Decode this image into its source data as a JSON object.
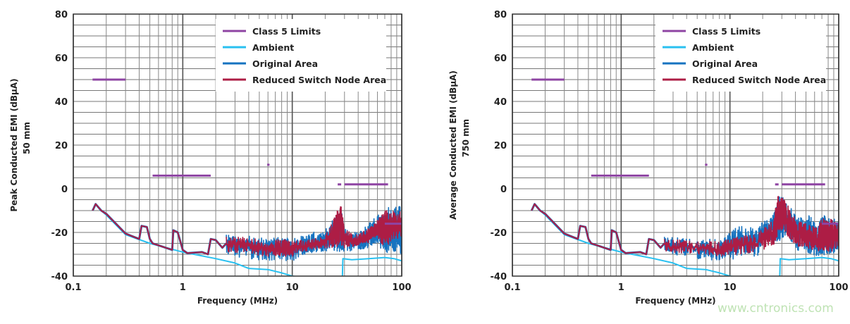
{
  "chart_data": [
    {
      "type": "line",
      "xlabel": "Frequency (MHz)",
      "ylabel": "Peak Conducted EMI (dBµA)",
      "ylabel2": "50 mm",
      "xscale": "log",
      "xlim": [
        0.1,
        100
      ],
      "ylim": [
        -40,
        80
      ],
      "xticks": [
        "0.1",
        "1",
        "10",
        "100"
      ],
      "yticks": [
        "80",
        "60",
        "40",
        "20",
        "0",
        "-20",
        "-40"
      ],
      "ytick_values": [
        80,
        60,
        40,
        20,
        0,
        -20,
        -40
      ],
      "grid": true,
      "legend_placement": "top-right",
      "legend": [
        "Class 5 Limits",
        "Ambient",
        "Original Area",
        "Reduced Switch Node Area"
      ],
      "colors": {
        "limits": "#8e44a3",
        "ambient": "#29c0f0",
        "original": "#1673c0",
        "reduced": "#ad1d45"
      },
      "limits": [
        [
          0.15,
          0.3,
          50
        ],
        [
          0.53,
          1.8,
          6
        ],
        [
          5.9,
          6.2,
          11
        ],
        [
          26,
          28,
          2
        ],
        [
          30,
          75,
          2
        ],
        [
          70,
          100,
          -16
        ]
      ],
      "ambient": [
        [
          0.15,
          -10
        ],
        [
          0.16,
          -7
        ],
        [
          0.18,
          -10
        ],
        [
          0.2,
          -12
        ],
        [
          0.3,
          -21
        ],
        [
          0.5,
          -25
        ],
        [
          1,
          -29
        ],
        [
          2,
          -32
        ],
        [
          3,
          -34
        ],
        [
          4,
          -36.5
        ],
        [
          6,
          -37
        ],
        [
          8,
          -38.5
        ],
        [
          10,
          -40
        ],
        [
          12,
          -40.5
        ],
        [
          28,
          -40.5
        ],
        [
          28.5,
          -46
        ],
        [
          29,
          -32
        ],
        [
          35,
          -32.5
        ],
        [
          50,
          -32
        ],
        [
          70,
          -31.5
        ],
        [
          85,
          -32
        ],
        [
          100,
          -33
        ]
      ],
      "low_freq_trace": [
        [
          0.15,
          -10
        ],
        [
          0.16,
          -7
        ],
        [
          0.18,
          -10
        ],
        [
          0.2,
          -11.5
        ],
        [
          0.3,
          -20.5
        ],
        [
          0.4,
          -23
        ],
        [
          0.42,
          -17
        ],
        [
          0.47,
          -17.5
        ],
        [
          0.5,
          -23
        ],
        [
          0.53,
          -25
        ],
        [
          0.8,
          -28
        ],
        [
          0.82,
          -19
        ],
        [
          0.9,
          -20
        ],
        [
          1.0,
          -28
        ],
        [
          1.1,
          -29.5
        ],
        [
          1.5,
          -29
        ],
        [
          1.7,
          -30
        ],
        [
          1.8,
          -23
        ],
        [
          2.0,
          -23.5
        ],
        [
          2.3,
          -27
        ],
        [
          2.5,
          -25
        ]
      ],
      "original_envelope": [
        [
          2.5,
          -31,
          -21
        ],
        [
          4,
          -32,
          -21
        ],
        [
          6,
          -33,
          -23
        ],
        [
          8,
          -33,
          -22
        ],
        [
          10,
          -33,
          -23
        ],
        [
          15,
          -30,
          -20
        ],
        [
          20,
          -29,
          -19
        ],
        [
          25,
          -29,
          -12
        ],
        [
          28,
          -29,
          -8
        ],
        [
          30,
          -29,
          -18
        ],
        [
          40,
          -28,
          -20
        ],
        [
          50,
          -27,
          -16
        ],
        [
          60,
          -25,
          -12
        ],
        [
          70,
          -30,
          -9
        ],
        [
          80,
          -30,
          -8
        ],
        [
          100,
          -30,
          -8
        ]
      ],
      "reduced_envelope": [
        [
          2.5,
          -29,
          -22
        ],
        [
          4,
          -30,
          -22
        ],
        [
          6,
          -31,
          -24
        ],
        [
          8,
          -31,
          -23
        ],
        [
          10,
          -31,
          -24
        ],
        [
          15,
          -28,
          -23
        ],
        [
          20,
          -27,
          -22
        ],
        [
          25,
          -27,
          -10
        ],
        [
          28,
          -27,
          -8
        ],
        [
          30,
          -27,
          -19
        ],
        [
          40,
          -26,
          -21
        ],
        [
          50,
          -25,
          -18
        ],
        [
          60,
          -22,
          -14
        ],
        [
          70,
          -28,
          -10
        ],
        [
          80,
          -25,
          -10
        ],
        [
          100,
          -22,
          -10
        ]
      ]
    },
    {
      "type": "line",
      "xlabel": "Frequency (MHz)",
      "ylabel": "Average Conducted EMI (dBµA)",
      "ylabel2": "750 mm",
      "xscale": "log",
      "xlim": [
        0.1,
        100
      ],
      "ylim": [
        -40,
        80
      ],
      "xticks": [
        "0.1",
        "1",
        "10",
        "100"
      ],
      "yticks": [
        "80",
        "60",
        "40",
        "20",
        "0",
        "-20",
        "-40"
      ],
      "ytick_values": [
        80,
        60,
        40,
        20,
        0,
        -20,
        -40
      ],
      "grid": true,
      "legend_placement": "top-right",
      "legend": [
        "Class 5 Limits",
        "Ambient",
        "Original Area",
        "Reduced Switch Node Area"
      ],
      "colors": {
        "limits": "#8e44a3",
        "ambient": "#29c0f0",
        "original": "#1673c0",
        "reduced": "#ad1d45"
      },
      "limits": [
        [
          0.15,
          0.3,
          50
        ],
        [
          0.53,
          1.8,
          6
        ],
        [
          5.9,
          6.2,
          11
        ],
        [
          26,
          28,
          2
        ],
        [
          30,
          75,
          2
        ],
        [
          70,
          100,
          -16
        ]
      ],
      "ambient": [
        [
          0.15,
          -10
        ],
        [
          0.16,
          -7
        ],
        [
          0.18,
          -10
        ],
        [
          0.2,
          -12
        ],
        [
          0.3,
          -21
        ],
        [
          0.5,
          -25
        ],
        [
          1,
          -29
        ],
        [
          2,
          -32
        ],
        [
          3,
          -34
        ],
        [
          4,
          -36.5
        ],
        [
          6,
          -37
        ],
        [
          8,
          -38.5
        ],
        [
          10,
          -40
        ],
        [
          12,
          -40.5
        ],
        [
          28,
          -40.5
        ],
        [
          28.5,
          -46
        ],
        [
          29,
          -32
        ],
        [
          35,
          -32.5
        ],
        [
          50,
          -32
        ],
        [
          70,
          -31.5
        ],
        [
          85,
          -32
        ],
        [
          100,
          -33
        ]
      ],
      "low_freq_trace": [
        [
          0.15,
          -10
        ],
        [
          0.16,
          -7
        ],
        [
          0.18,
          -10
        ],
        [
          0.2,
          -11.5
        ],
        [
          0.3,
          -20.5
        ],
        [
          0.4,
          -23
        ],
        [
          0.42,
          -17
        ],
        [
          0.47,
          -17.5
        ],
        [
          0.5,
          -23
        ],
        [
          0.53,
          -25
        ],
        [
          0.8,
          -28
        ],
        [
          0.82,
          -19
        ],
        [
          0.9,
          -20
        ],
        [
          1.0,
          -28
        ],
        [
          1.1,
          -29.5
        ],
        [
          1.5,
          -29
        ],
        [
          1.7,
          -30
        ],
        [
          1.8,
          -23
        ],
        [
          2.0,
          -23.5
        ],
        [
          2.3,
          -27
        ],
        [
          2.5,
          -25
        ]
      ],
      "original_envelope": [
        [
          2.5,
          -30,
          -22
        ],
        [
          5,
          -32,
          -23
        ],
        [
          8,
          -33,
          -23
        ],
        [
          12,
          -32,
          -17
        ],
        [
          18,
          -31,
          -18
        ],
        [
          20,
          -24,
          -15
        ],
        [
          25,
          -24,
          -12
        ],
        [
          28,
          -24,
          -2
        ],
        [
          32,
          -22,
          -4
        ],
        [
          40,
          -28,
          -12
        ],
        [
          50,
          -29,
          -14
        ],
        [
          55,
          -30,
          -11
        ],
        [
          65,
          -31,
          -17
        ],
        [
          70,
          -30,
          -12
        ],
        [
          85,
          -31,
          -13
        ],
        [
          100,
          -28,
          -15
        ]
      ],
      "reduced_envelope": [
        [
          2.5,
          -29,
          -23
        ],
        [
          5,
          -30,
          -24
        ],
        [
          8,
          -31,
          -24
        ],
        [
          12,
          -30,
          -22
        ],
        [
          18,
          -29,
          -20
        ],
        [
          25,
          -26,
          -14
        ],
        [
          28,
          -22,
          -2
        ],
        [
          32,
          -20,
          -5
        ],
        [
          40,
          -26,
          -14
        ],
        [
          50,
          -27,
          -16
        ],
        [
          65,
          -29,
          -18
        ],
        [
          70,
          -28,
          -13
        ],
        [
          85,
          -29,
          -14
        ],
        [
          100,
          -26,
          -16
        ]
      ]
    }
  ],
  "watermark": "www.cntronics.com"
}
